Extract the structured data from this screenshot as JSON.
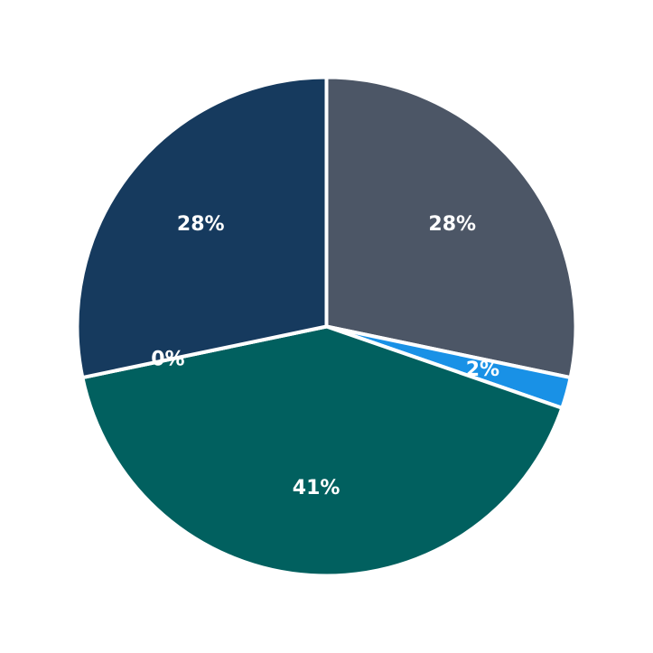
{
  "chart_data": {
    "type": "pie",
    "slices": [
      {
        "name": "slate",
        "label": "28%",
        "value": 28,
        "color": "#4C5666"
      },
      {
        "name": "blue",
        "label": "2%",
        "value": 2,
        "color": "#1991E6"
      },
      {
        "name": "teal",
        "label": "41%",
        "value": 41,
        "color": "#01605F"
      },
      {
        "name": "zero",
        "label": "0%",
        "value": 0,
        "color": "#FFFFFF"
      },
      {
        "name": "navy",
        "label": "28%",
        "value": 28,
        "color": "#163A5E"
      }
    ],
    "start_angle": "12-oclock",
    "direction": "clockwise",
    "legend": "none",
    "title": "",
    "label_color": "#FFFFFF",
    "label_distance": 0.65,
    "border_color": "#FFFFFF",
    "border_width": 4,
    "background": "#FFFFFF",
    "center_x": 361.5,
    "center_y": 361.5,
    "radius": 276
  }
}
